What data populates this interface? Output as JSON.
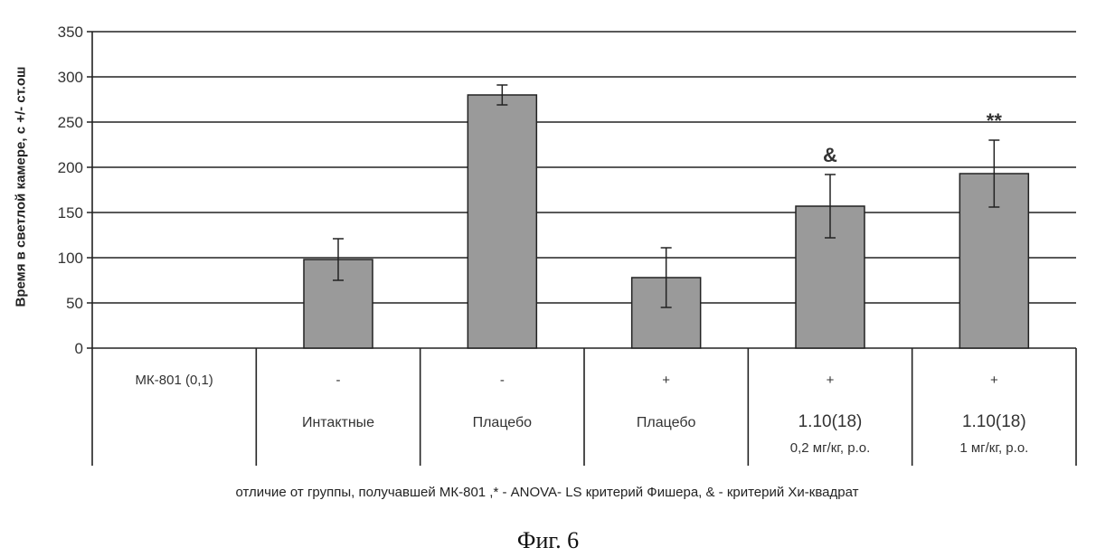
{
  "chart_data": {
    "type": "bar",
    "title": "",
    "ylabel": "Время в светлой камере, с +/- ст.ош",
    "ylim": [
      0,
      350
    ],
    "yticks": [
      0,
      50,
      100,
      150,
      200,
      250,
      300,
      350
    ],
    "grid": true,
    "row_header": "МК-801 (0,1)",
    "categories": [
      {
        "mk801": "-",
        "name": "Интактные",
        "dose": ""
      },
      {
        "mk801": "-",
        "name": "Плацебо",
        "dose": ""
      },
      {
        "mk801": "+",
        "name": "Плацебо",
        "dose": ""
      },
      {
        "mk801": "+",
        "name": "1.10(18)",
        "dose": "0,2  мг/кг, p.o."
      },
      {
        "mk801": "+",
        "name": "1.10(18)",
        "dose": "1  мг/кг, p.o."
      }
    ],
    "values": [
      98,
      280,
      78,
      157,
      193
    ],
    "errors": [
      23,
      11,
      33,
      35,
      37
    ],
    "annotations": [
      "",
      "",
      "",
      "&",
      "**"
    ],
    "bar_color": "#9a9a9a"
  },
  "footnote": "отличие от группы, получавшей МК-801 ,* - ANOVA- LS критерий Фишера, & - критерий Хи-квадрат",
  "figure_label": "Фиг. 6"
}
